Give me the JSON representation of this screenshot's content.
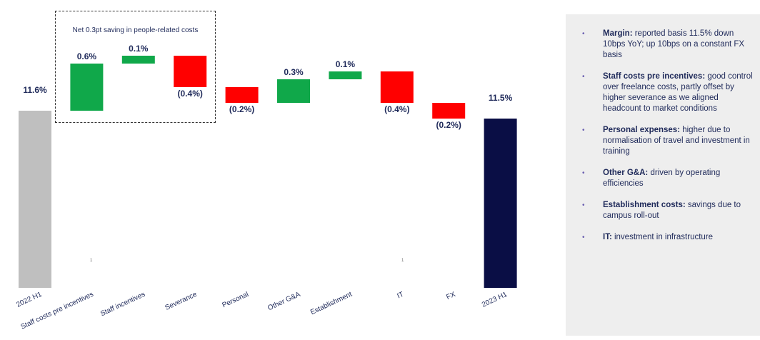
{
  "chart_data": {
    "type": "waterfall",
    "categories": [
      "2022 H1",
      "Staff costs pre incentives",
      "Staff incentives",
      "Severance",
      "Personal",
      "Other G&A",
      "Establishment",
      "IT",
      "FX",
      "2023 H1"
    ],
    "values": [
      11.6,
      0.6,
      0.1,
      -0.4,
      -0.2,
      0.3,
      0.1,
      -0.4,
      -0.2,
      11.5
    ],
    "labels": [
      "11.6%",
      "0.6%",
      "0.1%",
      "(0.4%)",
      "(0.2%)",
      "0.3%",
      "0.1%",
      "(0.4%)",
      "(0.2%)",
      "11.5%"
    ],
    "kinds": [
      "total",
      "delta",
      "delta",
      "delta",
      "delta",
      "delta",
      "delta",
      "delta",
      "delta",
      "total"
    ],
    "colors": {
      "start_total": "#bfbfbf",
      "end_total": "#0a0e45",
      "increase": "#10a84a",
      "decrease": "#ff0000",
      "label": "#1f2a5a"
    },
    "annotation": "Net 0.3pt saving in people-related costs",
    "minor_marks": [
      "1",
      "1"
    ]
  },
  "commentary": [
    {
      "title": "Margin:",
      "text": " reported basis 11.5% down 10bps YoY; up 10bps on a constant FX basis"
    },
    {
      "title": "Staff costs pre incentives:",
      "text": " good control over freelance costs, partly offset by higher severance as we aligned headcount to market conditions"
    },
    {
      "title": "Personal expenses:",
      "text": " higher due to normalisation of travel and investment in training"
    },
    {
      "title": "Other G&A:",
      "text": " driven by operating efficiencies"
    },
    {
      "title": "Establishment costs:",
      "text": " savings due to campus roll-out"
    },
    {
      "title": "IT:",
      "text": " investment in infrastructure"
    }
  ]
}
